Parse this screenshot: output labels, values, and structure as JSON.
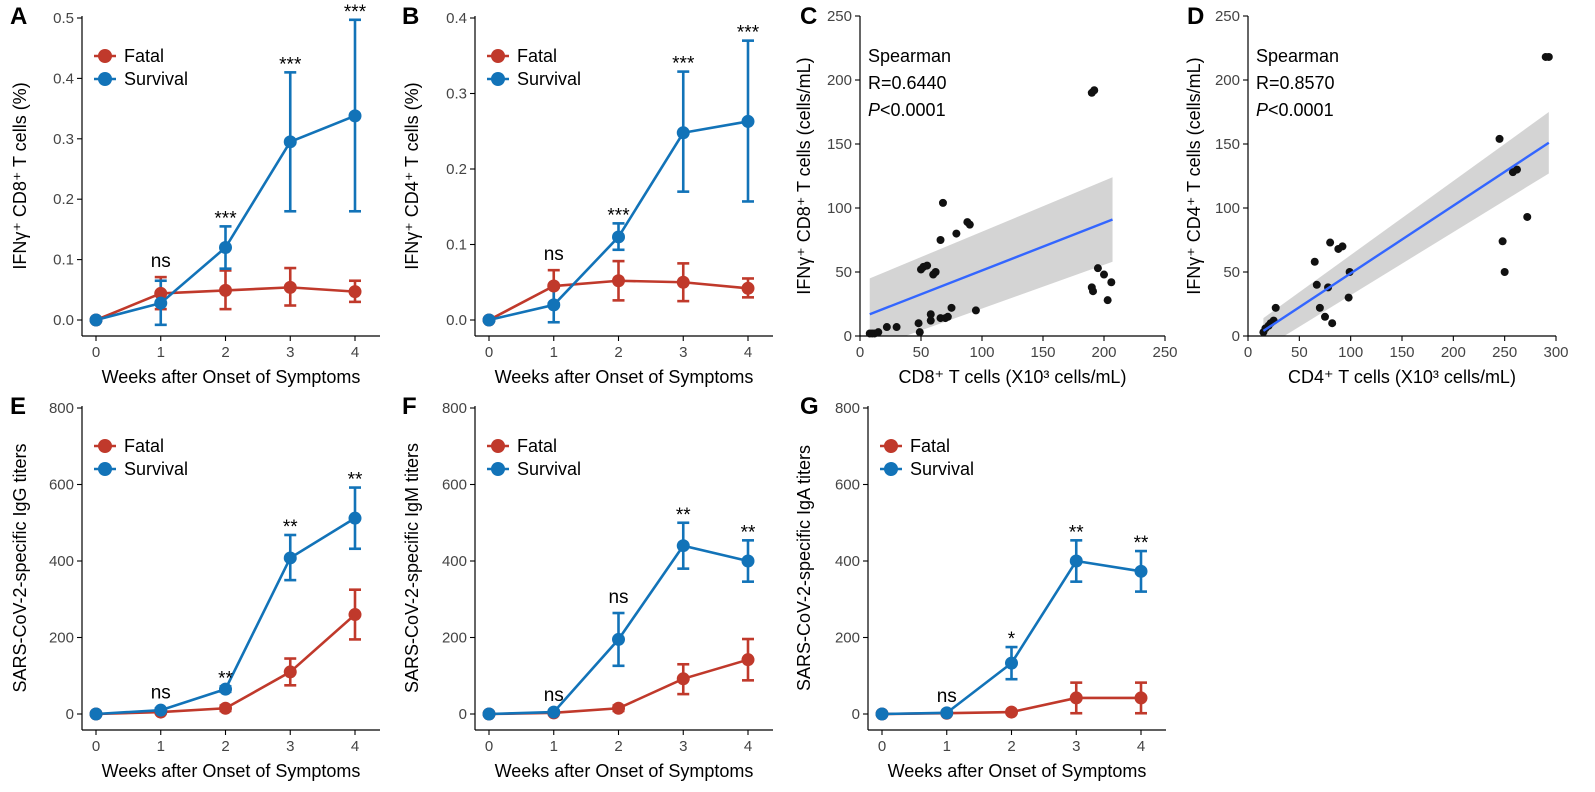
{
  "colors": {
    "fatal": "#c0392b",
    "survival": "#1273b8",
    "fit_line": "#3366ff",
    "ci_band": "#cfcfcf",
    "points": "#111111"
  },
  "chart_data": [
    {
      "id": "A",
      "type": "line",
      "letter": "A",
      "xlabel": "Weeks after Onset of Symptoms",
      "ylabel": "IFNγ⁺ CD8⁺ T cells (%)",
      "x": [
        0,
        1,
        2,
        3,
        4
      ],
      "x_ticks": [
        "0",
        "1",
        "2",
        "3",
        "4"
      ],
      "ylim": [
        0,
        0.5
      ],
      "y_ticks": [
        "0.0",
        "0.1",
        "0.2",
        "0.3",
        "0.4",
        "0.5"
      ],
      "series": [
        {
          "name": "Fatal",
          "values": [
            0.0,
            0.044,
            0.049,
            0.054,
            0.047
          ],
          "lower": [
            0.0,
            0.018,
            0.018,
            0.024,
            0.03
          ],
          "upper": [
            0.0,
            0.071,
            0.082,
            0.086,
            0.065
          ]
        },
        {
          "name": "Survival",
          "values": [
            0.0,
            0.028,
            0.12,
            0.295,
            0.338
          ],
          "lower": [
            0.0,
            -0.008,
            0.085,
            0.18,
            0.18
          ],
          "upper": [
            0.0,
            0.065,
            0.155,
            0.41,
            0.497
          ]
        }
      ],
      "legend": [
        "Fatal",
        "Survival"
      ],
      "significance": [
        "",
        "ns",
        "***",
        "***",
        "***"
      ]
    },
    {
      "id": "B",
      "type": "line",
      "letter": "B",
      "xlabel": "Weeks after Onset of Symptoms",
      "ylabel": "IFNγ⁺ CD4⁺ T cells (%)",
      "x": [
        0,
        1,
        2,
        3,
        4
      ],
      "x_ticks": [
        "0",
        "1",
        "2",
        "3",
        "4"
      ],
      "ylim": [
        0,
        0.4
      ],
      "y_ticks": [
        "0.0",
        "0.1",
        "0.2",
        "0.3",
        "0.4"
      ],
      "series": [
        {
          "name": "Fatal",
          "values": [
            0.0,
            0.045,
            0.052,
            0.05,
            0.042
          ],
          "lower": [
            0.0,
            0.022,
            0.026,
            0.025,
            0.03
          ],
          "upper": [
            0.0,
            0.066,
            0.078,
            0.075,
            0.055
          ]
        },
        {
          "name": "Survival",
          "values": [
            0.0,
            0.02,
            0.11,
            0.248,
            0.263
          ],
          "lower": [
            0.0,
            -0.003,
            0.093,
            0.17,
            0.157
          ],
          "upper": [
            0.0,
            0.043,
            0.128,
            0.329,
            0.37
          ]
        }
      ],
      "legend": [
        "Fatal",
        "Survival"
      ],
      "significance": [
        "",
        "ns",
        "***",
        "***",
        "***"
      ]
    },
    {
      "id": "C",
      "type": "scatter",
      "letter": "C",
      "xlabel": "CD8⁺ T cells (X10³ cells/mL)",
      "ylabel": "IFNγ⁺ CD8⁺ T cells (cells/mL)",
      "xlim": [
        0,
        250
      ],
      "ylim": [
        0,
        250
      ],
      "x_ticks": [
        "0",
        "50",
        "100",
        "150",
        "200",
        "250"
      ],
      "y_ticks": [
        "0",
        "50",
        "100",
        "150",
        "200",
        "250"
      ],
      "stats": {
        "method": "Spearman",
        "r": "R=0.6440",
        "p_italic": "P",
        "p_rest": "<0.0001"
      },
      "points": [
        [
          8,
          2
        ],
        [
          10,
          2
        ],
        [
          12,
          2
        ],
        [
          15,
          3
        ],
        [
          22,
          7
        ],
        [
          30,
          7
        ],
        [
          48,
          10
        ],
        [
          49,
          3
        ],
        [
          50,
          52
        ],
        [
          52,
          54
        ],
        [
          55,
          55
        ],
        [
          58,
          12
        ],
        [
          58,
          17
        ],
        [
          60,
          48
        ],
        [
          62,
          50
        ],
        [
          66,
          14
        ],
        [
          66,
          75
        ],
        [
          68,
          104
        ],
        [
          70,
          14
        ],
        [
          72,
          15
        ],
        [
          75,
          22
        ],
        [
          79,
          80
        ],
        [
          88,
          89
        ],
        [
          90,
          87
        ],
        [
          95,
          20
        ],
        [
          190,
          190
        ],
        [
          192,
          192
        ],
        [
          190,
          38
        ],
        [
          191,
          35
        ],
        [
          195,
          53
        ],
        [
          200,
          48
        ],
        [
          203,
          28
        ],
        [
          206,
          42
        ]
      ],
      "fit": {
        "x0": 8,
        "y0": 17,
        "x1": 207,
        "y1": 91,
        "ci_lower0": -10,
        "ci_upper0": 45,
        "ci_lower1": 58,
        "ci_upper1": 124
      }
    },
    {
      "id": "D",
      "type": "scatter",
      "letter": "D",
      "xlabel": "CD4⁺ T cells (X10³ cells/mL)",
      "ylabel": "IFNγ⁺ CD4⁺ T cells (cells/mL)",
      "xlim": [
        0,
        300
      ],
      "ylim": [
        0,
        250
      ],
      "x_ticks": [
        "0",
        "50",
        "100",
        "150",
        "200",
        "250",
        "300"
      ],
      "y_ticks": [
        "0",
        "50",
        "100",
        "150",
        "200",
        "250"
      ],
      "stats": {
        "method": "Spearman",
        "r": "R=0.8570",
        "p_italic": "P",
        "p_rest": "<0.0001"
      },
      "points": [
        [
          15,
          3
        ],
        [
          17,
          6
        ],
        [
          20,
          8
        ],
        [
          22,
          10
        ],
        [
          25,
          12
        ],
        [
          27,
          22
        ],
        [
          65,
          58
        ],
        [
          67,
          40
        ],
        [
          70,
          22
        ],
        [
          75,
          15
        ],
        [
          78,
          38
        ],
        [
          80,
          73
        ],
        [
          82,
          10
        ],
        [
          88,
          68
        ],
        [
          92,
          70
        ],
        [
          98,
          30
        ],
        [
          99,
          50
        ],
        [
          245,
          154
        ],
        [
          248,
          74
        ],
        [
          250,
          50
        ],
        [
          258,
          128
        ],
        [
          262,
          130
        ],
        [
          272,
          93
        ],
        [
          290,
          218
        ],
        [
          293,
          218
        ]
      ],
      "fit": {
        "x0": 15,
        "y0": 4,
        "x1": 293,
        "y1": 151,
        "ci_lower0": -10,
        "ci_upper0": 14,
        "ci_lower1": 127,
        "ci_upper1": 175
      }
    },
    {
      "id": "E",
      "type": "line",
      "letter": "E",
      "xlabel": "Weeks after Onset of Symptoms",
      "ylabel": "SARS-CoV-2-specific IgG titers",
      "x": [
        0,
        1,
        2,
        3,
        4
      ],
      "x_ticks": [
        "0",
        "1",
        "2",
        "3",
        "4"
      ],
      "ylim": [
        0,
        800
      ],
      "y_ticks": [
        "0",
        "200",
        "400",
        "600",
        "800"
      ],
      "series": [
        {
          "name": "Fatal",
          "values": [
            0,
            5,
            15,
            110,
            260
          ],
          "lower": [
            0,
            2,
            8,
            75,
            195
          ],
          "upper": [
            0,
            8,
            22,
            145,
            325
          ]
        },
        {
          "name": "Survival",
          "values": [
            0,
            10,
            65,
            408,
            512
          ],
          "lower": [
            0,
            5,
            58,
            350,
            432
          ],
          "upper": [
            0,
            15,
            72,
            468,
            592
          ]
        }
      ],
      "legend": [
        "Fatal",
        "Survival"
      ],
      "significance": [
        "",
        "ns",
        "**",
        "**",
        "**"
      ]
    },
    {
      "id": "F",
      "type": "line",
      "letter": "F",
      "xlabel": "Weeks after Onset of Symptoms",
      "ylabel": "SARS-CoV-2-specific IgM titers",
      "x": [
        0,
        1,
        2,
        3,
        4
      ],
      "x_ticks": [
        "0",
        "1",
        "2",
        "3",
        "4"
      ],
      "ylim": [
        0,
        800
      ],
      "y_ticks": [
        "0",
        "200",
        "400",
        "600",
        "800"
      ],
      "series": [
        {
          "name": "Fatal",
          "values": [
            0,
            3,
            15,
            92,
            142
          ],
          "lower": [
            0,
            1,
            8,
            52,
            88
          ],
          "upper": [
            0,
            5,
            22,
            130,
            196
          ]
        },
        {
          "name": "Survival",
          "values": [
            0,
            5,
            195,
            440,
            400
          ],
          "lower": [
            0,
            2,
            126,
            380,
            346
          ],
          "upper": [
            0,
            8,
            264,
            500,
            454
          ]
        }
      ],
      "legend": [
        "Fatal",
        "Survival"
      ],
      "significance": [
        "",
        "ns",
        "ns",
        "**",
        "**"
      ]
    },
    {
      "id": "G",
      "type": "line",
      "letter": "G",
      "xlabel": "Weeks after Onset of Symptoms",
      "ylabel": "SARS-CoV-2-specific IgA titers",
      "x": [
        0,
        1,
        2,
        3,
        4
      ],
      "x_ticks": [
        "0",
        "1",
        "2",
        "3",
        "4"
      ],
      "ylim": [
        0,
        800
      ],
      "y_ticks": [
        "0",
        "200",
        "400",
        "600",
        "800"
      ],
      "series": [
        {
          "name": "Fatal",
          "values": [
            0,
            2,
            5,
            42,
            42
          ],
          "lower": [
            0,
            1,
            2,
            2,
            2
          ],
          "upper": [
            0,
            3,
            8,
            82,
            82
          ]
        },
        {
          "name": "Survival",
          "values": [
            0,
            3,
            133,
            400,
            373
          ],
          "lower": [
            0,
            1,
            91,
            346,
            320
          ],
          "upper": [
            0,
            5,
            175,
            454,
            426
          ]
        }
      ],
      "legend": [
        "Fatal",
        "Survival"
      ],
      "significance": [
        "",
        "ns",
        "*",
        "**",
        "**"
      ]
    }
  ]
}
